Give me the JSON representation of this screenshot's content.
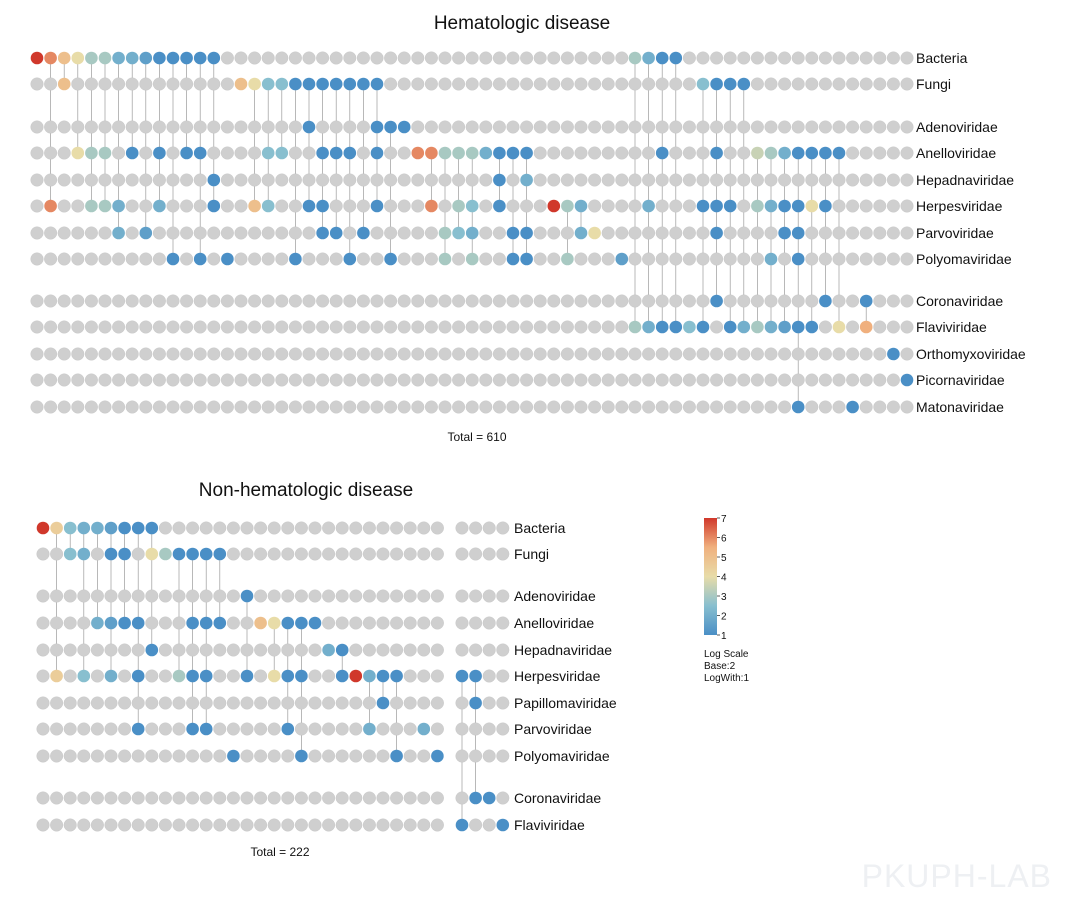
{
  "watermark": "PKUPH-LAB",
  "colorbar": {
    "ticks": [
      "7",
      "6",
      "5",
      "4",
      "3",
      "2",
      "1"
    ],
    "caption": [
      "Log Scale",
      "Base:2",
      "LogWith:1"
    ],
    "colors": [
      "#4a8fc6",
      "#88bfcf",
      "#e8dca8",
      "#f0b07e",
      "#d0382b"
    ],
    "min": 1,
    "max": 7
  },
  "chart_data": [
    {
      "type": "heatmap",
      "title": "Hematologic disease",
      "total_label": "Total = 610",
      "rows": [
        "Bacteria",
        "Fungi",
        "Adenoviridae",
        "Anelloviridae",
        "Hepadnaviridae",
        "Herpesviridae",
        "Parvoviridae",
        "Polyomaviridae",
        "Coronaviridae",
        "Flaviviridae",
        "Orthomyxoviridae",
        "Picornaviridae",
        "Matonaviridae"
      ],
      "row_groups": [
        [
          0,
          1
        ],
        [
          2,
          3,
          4,
          5,
          6,
          7
        ],
        [
          8,
          9,
          10,
          11,
          12
        ]
      ],
      "col_blocks": [
        44,
        21
      ],
      "cells": [
        [
          [
            0,
            7
          ],
          [
            1,
            6
          ],
          [
            2,
            5
          ],
          [
            3,
            4
          ],
          [
            4,
            3
          ],
          [
            5,
            3
          ],
          [
            6,
            2
          ],
          [
            7,
            2
          ],
          [
            8,
            1.5
          ],
          [
            9,
            1
          ],
          [
            10,
            1
          ],
          [
            11,
            1
          ],
          [
            12,
            1
          ],
          [
            13,
            1
          ],
          [
            44,
            3
          ],
          [
            45,
            2
          ],
          [
            46,
            1
          ],
          [
            47,
            1
          ]
        ],
        [
          [
            2,
            5
          ],
          [
            15,
            5
          ],
          [
            16,
            4
          ],
          [
            17,
            2.5
          ],
          [
            18,
            2.5
          ],
          [
            19,
            1
          ],
          [
            20,
            1
          ],
          [
            21,
            1
          ],
          [
            22,
            1
          ],
          [
            23,
            1
          ],
          [
            24,
            1
          ],
          [
            25,
            1
          ],
          [
            49,
            2.5
          ],
          [
            50,
            1
          ],
          [
            51,
            1
          ],
          [
            52,
            1
          ]
        ],
        [
          [
            20,
            1
          ],
          [
            25,
            1
          ],
          [
            26,
            1
          ],
          [
            27,
            1
          ]
        ],
        [
          [
            3,
            4
          ],
          [
            4,
            3
          ],
          [
            5,
            3
          ],
          [
            7,
            1
          ],
          [
            9,
            1
          ],
          [
            11,
            1
          ],
          [
            12,
            1
          ],
          [
            17,
            2.5
          ],
          [
            18,
            2.5
          ],
          [
            21,
            1
          ],
          [
            22,
            1
          ],
          [
            23,
            1
          ],
          [
            25,
            1
          ],
          [
            28,
            6
          ],
          [
            29,
            6
          ],
          [
            30,
            3
          ],
          [
            31,
            3
          ],
          [
            32,
            3
          ],
          [
            33,
            2
          ],
          [
            34,
            1
          ],
          [
            35,
            1
          ],
          [
            36,
            1
          ],
          [
            46,
            1
          ],
          [
            50,
            1
          ],
          [
            53,
            3.5
          ],
          [
            54,
            3
          ],
          [
            55,
            2
          ],
          [
            56,
            1
          ],
          [
            57,
            1
          ],
          [
            58,
            1
          ],
          [
            59,
            1
          ]
        ],
        [
          [
            13,
            1
          ],
          [
            34,
            1
          ],
          [
            36,
            2
          ]
        ],
        [
          [
            1,
            6
          ],
          [
            4,
            3
          ],
          [
            5,
            3
          ],
          [
            6,
            2
          ],
          [
            9,
            2
          ],
          [
            13,
            1
          ],
          [
            16,
            5
          ],
          [
            17,
            2.5
          ],
          [
            20,
            1
          ],
          [
            21,
            1
          ],
          [
            25,
            1
          ],
          [
            29,
            6
          ],
          [
            31,
            3
          ],
          [
            32,
            2.5
          ],
          [
            34,
            1
          ],
          [
            38,
            7
          ],
          [
            39,
            3
          ],
          [
            40,
            2
          ],
          [
            45,
            2
          ],
          [
            49,
            1
          ],
          [
            50,
            1
          ],
          [
            51,
            1
          ],
          [
            53,
            3
          ],
          [
            54,
            2
          ],
          [
            55,
            1
          ],
          [
            56,
            1
          ],
          [
            57,
            4
          ],
          [
            58,
            1
          ]
        ],
        [
          [
            6,
            2
          ],
          [
            8,
            1.5
          ],
          [
            21,
            1
          ],
          [
            22,
            1
          ],
          [
            24,
            1
          ],
          [
            30,
            3
          ],
          [
            31,
            2.5
          ],
          [
            32,
            2
          ],
          [
            35,
            1
          ],
          [
            36,
            1
          ],
          [
            40,
            2
          ],
          [
            41,
            4
          ],
          [
            50,
            1
          ],
          [
            55,
            1
          ],
          [
            56,
            1
          ]
        ],
        [
          [
            10,
            1
          ],
          [
            12,
            1
          ],
          [
            14,
            1
          ],
          [
            19,
            1
          ],
          [
            23,
            1
          ],
          [
            26,
            1
          ],
          [
            30,
            3
          ],
          [
            32,
            3
          ],
          [
            35,
            1
          ],
          [
            36,
            1
          ],
          [
            39,
            3
          ],
          [
            43,
            1.5
          ],
          [
            54,
            2
          ],
          [
            56,
            1
          ]
        ],
        [
          [
            50,
            1
          ],
          [
            58,
            1
          ],
          [
            61,
            1
          ]
        ],
        [
          [
            44,
            3
          ],
          [
            45,
            2
          ],
          [
            46,
            1
          ],
          [
            47,
            1
          ],
          [
            48,
            2.5
          ],
          [
            49,
            1
          ],
          [
            51,
            1
          ],
          [
            52,
            2
          ],
          [
            53,
            3
          ],
          [
            54,
            2
          ],
          [
            55,
            1.5
          ],
          [
            56,
            1
          ],
          [
            57,
            1
          ],
          [
            59,
            4
          ],
          [
            61,
            5.5
          ]
        ],
        [
          [
            63,
            1
          ]
        ],
        [
          [
            64,
            1
          ]
        ],
        [
          [
            56,
            1
          ],
          [
            60,
            1
          ]
        ]
      ]
    },
    {
      "type": "heatmap",
      "title": "Non-hematologic disease",
      "total_label": "Total = 222",
      "rows": [
        "Bacteria",
        "Fungi",
        "Adenoviridae",
        "Anelloviridae",
        "Hepadnaviridae",
        "Herpesviridae",
        "Papillomaviridae",
        "Parvoviridae",
        "Polyomaviridae",
        "Coronaviridae",
        "Flaviviridae"
      ],
      "row_groups": [
        [
          0,
          1
        ],
        [
          2,
          3,
          4,
          5,
          6,
          7,
          8
        ],
        [
          9,
          10
        ]
      ],
      "col_blocks": [
        30,
        4
      ],
      "cells": [
        [
          [
            0,
            7
          ],
          [
            1,
            4.5
          ],
          [
            2,
            2.5
          ],
          [
            3,
            2
          ],
          [
            4,
            2
          ],
          [
            5,
            1.5
          ],
          [
            6,
            1
          ],
          [
            7,
            1
          ],
          [
            8,
            1
          ]
        ],
        [
          [
            2,
            2.5
          ],
          [
            3,
            2
          ],
          [
            5,
            1
          ],
          [
            6,
            1
          ],
          [
            8,
            4
          ],
          [
            9,
            3
          ],
          [
            10,
            1
          ],
          [
            11,
            1
          ],
          [
            12,
            1
          ],
          [
            13,
            1
          ]
        ],
        [
          [
            15,
            1
          ]
        ],
        [
          [
            4,
            2
          ],
          [
            5,
            1.5
          ],
          [
            6,
            1
          ],
          [
            7,
            1
          ],
          [
            11,
            1
          ],
          [
            12,
            1
          ],
          [
            13,
            1
          ],
          [
            16,
            5
          ],
          [
            17,
            4
          ],
          [
            18,
            1
          ],
          [
            19,
            1
          ],
          [
            20,
            1
          ]
        ],
        [
          [
            8,
            1
          ],
          [
            21,
            2
          ],
          [
            22,
            1
          ]
        ],
        [
          [
            1,
            4.5
          ],
          [
            3,
            2.5
          ],
          [
            5,
            2
          ],
          [
            7,
            1
          ],
          [
            10,
            3
          ],
          [
            11,
            1
          ],
          [
            12,
            1
          ],
          [
            15,
            1
          ],
          [
            17,
            4
          ],
          [
            18,
            1
          ],
          [
            19,
            1
          ],
          [
            22,
            1
          ],
          [
            23,
            7
          ],
          [
            24,
            2
          ],
          [
            25,
            1
          ],
          [
            26,
            1
          ],
          [
            30,
            1
          ],
          [
            31,
            1
          ]
        ],
        [
          [
            25,
            1
          ],
          [
            31,
            1
          ]
        ],
        [
          [
            7,
            1
          ],
          [
            11,
            1
          ],
          [
            12,
            1
          ],
          [
            18,
            1
          ],
          [
            24,
            2
          ],
          [
            28,
            2
          ]
        ],
        [
          [
            14,
            1
          ],
          [
            19,
            1
          ],
          [
            26,
            1
          ],
          [
            29,
            1
          ]
        ],
        [
          [
            31,
            1
          ],
          [
            32,
            1
          ]
        ],
        [
          [
            30,
            1
          ],
          [
            33,
            1
          ]
        ]
      ]
    }
  ]
}
